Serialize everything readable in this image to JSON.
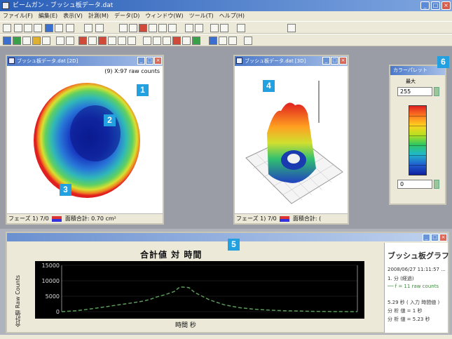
{
  "app": {
    "title": "ビームガン - ブッシュ板データ.dat",
    "menus": [
      "ファイル(F)",
      "編集(E)",
      "表示(V)",
      "計測(M)",
      "データ(D)",
      "ウィンドウ(W)",
      "ツール(T)",
      "ヘルプ(H)"
    ]
  },
  "badges": [
    "1",
    "2",
    "3",
    "4",
    "5",
    "6"
  ],
  "window2d": {
    "title": "ブッシュ板データ.dat [2D]",
    "readout": "(9) X:97 raw counts",
    "status_left": "フェーズ 1) 7/0",
    "status_right": "面積合計: 0.70 cm²"
  },
  "window3d": {
    "title": "ブッシュ板データ.dat [3D]",
    "status_left": "フェーズ 1) 7/0",
    "status_right": "面積合計: ("
  },
  "palette": {
    "title": "カラーパレット",
    "label": "最大",
    "max_value": "255",
    "min_value": "0"
  },
  "graph": {
    "legend_title": "ブッシュ板グラフ",
    "legend_lines": [
      "2008/06/27 11:11:57 ...",
      "1. 分 (経過)",
      "── f = 11 raw counts",
      "5.29 秒 ( 入力 時間値 )",
      "分 析 値  = 1 秒",
      "分 析 値  = 5.23 秒"
    ]
  },
  "chart_data": {
    "type": "line",
    "title": "合計値 対 時間",
    "xlabel": "時間 秒",
    "ylabel": "合計値 Raw Counts",
    "ylim": [
      0,
      15000
    ],
    "yticks": [
      "15000",
      "10000",
      "5000",
      "0"
    ],
    "series": [
      {
        "color": "#5a9a5a",
        "x": [
          0,
          5,
          10,
          15,
          20,
          25,
          28,
          30,
          32,
          35,
          38,
          40,
          43,
          45,
          50,
          55,
          60,
          65,
          70,
          75,
          80,
          85,
          90,
          95,
          100
        ],
        "values": [
          0,
          300,
          900,
          1600,
          2300,
          3000,
          3500,
          4000,
          4700,
          5500,
          6500,
          8000,
          7800,
          6200,
          3800,
          2200,
          1300,
          800,
          500,
          300,
          200,
          100,
          50,
          20,
          0
        ]
      }
    ]
  }
}
